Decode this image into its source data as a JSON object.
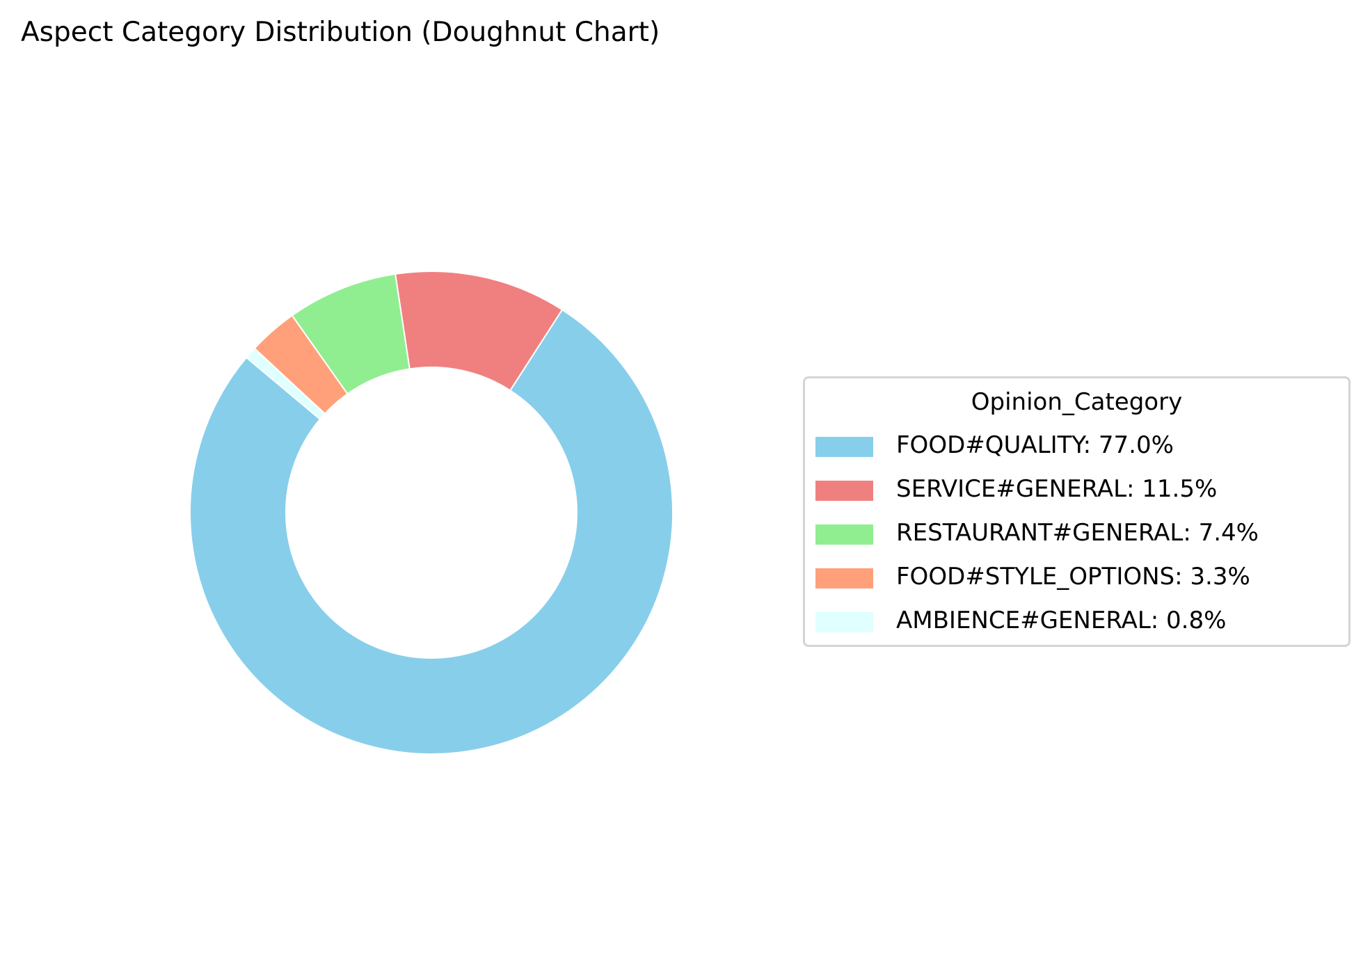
{
  "chart_data": {
    "type": "pie",
    "variant": "doughnut",
    "title": "Aspect Category Distribution (Doughnut Chart)",
    "legend": {
      "title": "Opinion_Category",
      "placement": "center-right"
    },
    "start_angle_deg": 140,
    "direction": "counterclockwise",
    "slices": [
      {
        "label": "FOOD#QUALITY",
        "value": 77.0,
        "legend_text": "FOOD#QUALITY: 77.0%",
        "color": "#87ceeb"
      },
      {
        "label": "SERVICE#GENERAL",
        "value": 11.5,
        "legend_text": "SERVICE#GENERAL: 11.5%",
        "color": "#f08080"
      },
      {
        "label": "RESTAURANT#GENERAL",
        "value": 7.4,
        "legend_text": "RESTAURANT#GENERAL: 7.4%",
        "color": "#90ee90"
      },
      {
        "label": "FOOD#STYLE_OPTIONS",
        "value": 3.3,
        "legend_text": "FOOD#STYLE_OPTIONS: 3.3%",
        "color": "#ffa07a"
      },
      {
        "label": "AMBIENCE#GENERAL",
        "value": 0.8,
        "legend_text": "AMBIENCE#GENERAL: 0.8%",
        "color": "#e0ffff"
      }
    ]
  }
}
